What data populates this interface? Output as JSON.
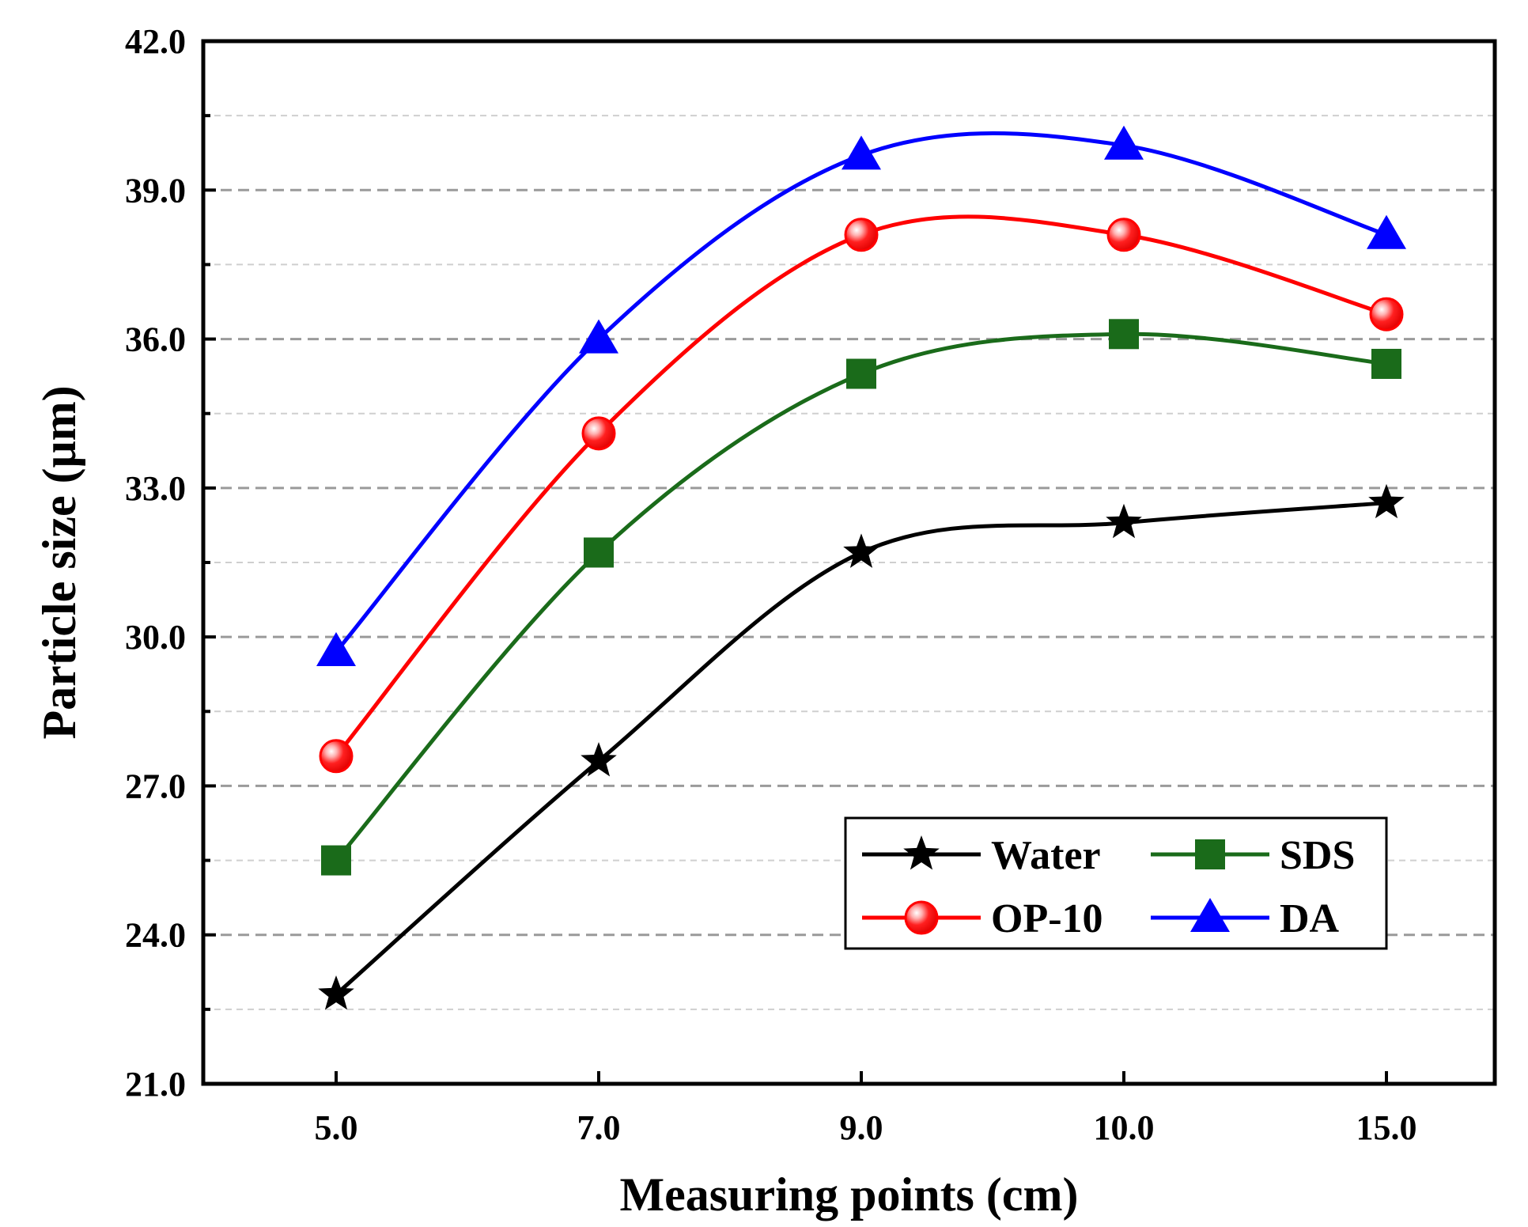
{
  "chart_data": {
    "type": "line",
    "categories": [
      "5.0",
      "7.0",
      "9.0",
      "10.0",
      "15.0"
    ],
    "xlabel": "Measuring points (cm)",
    "ylabel": "Particle size (μm)",
    "ylim": [
      21.0,
      42.0
    ],
    "yticks": [
      21.0,
      24.0,
      27.0,
      30.0,
      33.0,
      36.0,
      39.0,
      42.0
    ],
    "ytick_labels": [
      "21.0",
      "24.0",
      "27.0",
      "30.0",
      "33.0",
      "36.0",
      "39.0",
      "42.0"
    ],
    "grid": "horizontal dashed",
    "legend_position": "bottom-right",
    "series": [
      {
        "name": "Water",
        "values": [
          22.8,
          27.5,
          31.7,
          32.3,
          32.7
        ],
        "color": "#000000",
        "marker": "star"
      },
      {
        "name": "SDS",
        "values": [
          25.5,
          31.7,
          35.3,
          36.1,
          35.5
        ],
        "color": "#1a6b1a",
        "marker": "square"
      },
      {
        "name": "OP-10",
        "values": [
          27.6,
          34.1,
          38.1,
          38.1,
          36.5
        ],
        "color": "#ff0000",
        "marker": "circle"
      },
      {
        "name": "DA",
        "values": [
          29.7,
          36.0,
          39.7,
          39.9,
          38.1
        ],
        "color": "#0000ff",
        "marker": "triangle"
      }
    ]
  }
}
